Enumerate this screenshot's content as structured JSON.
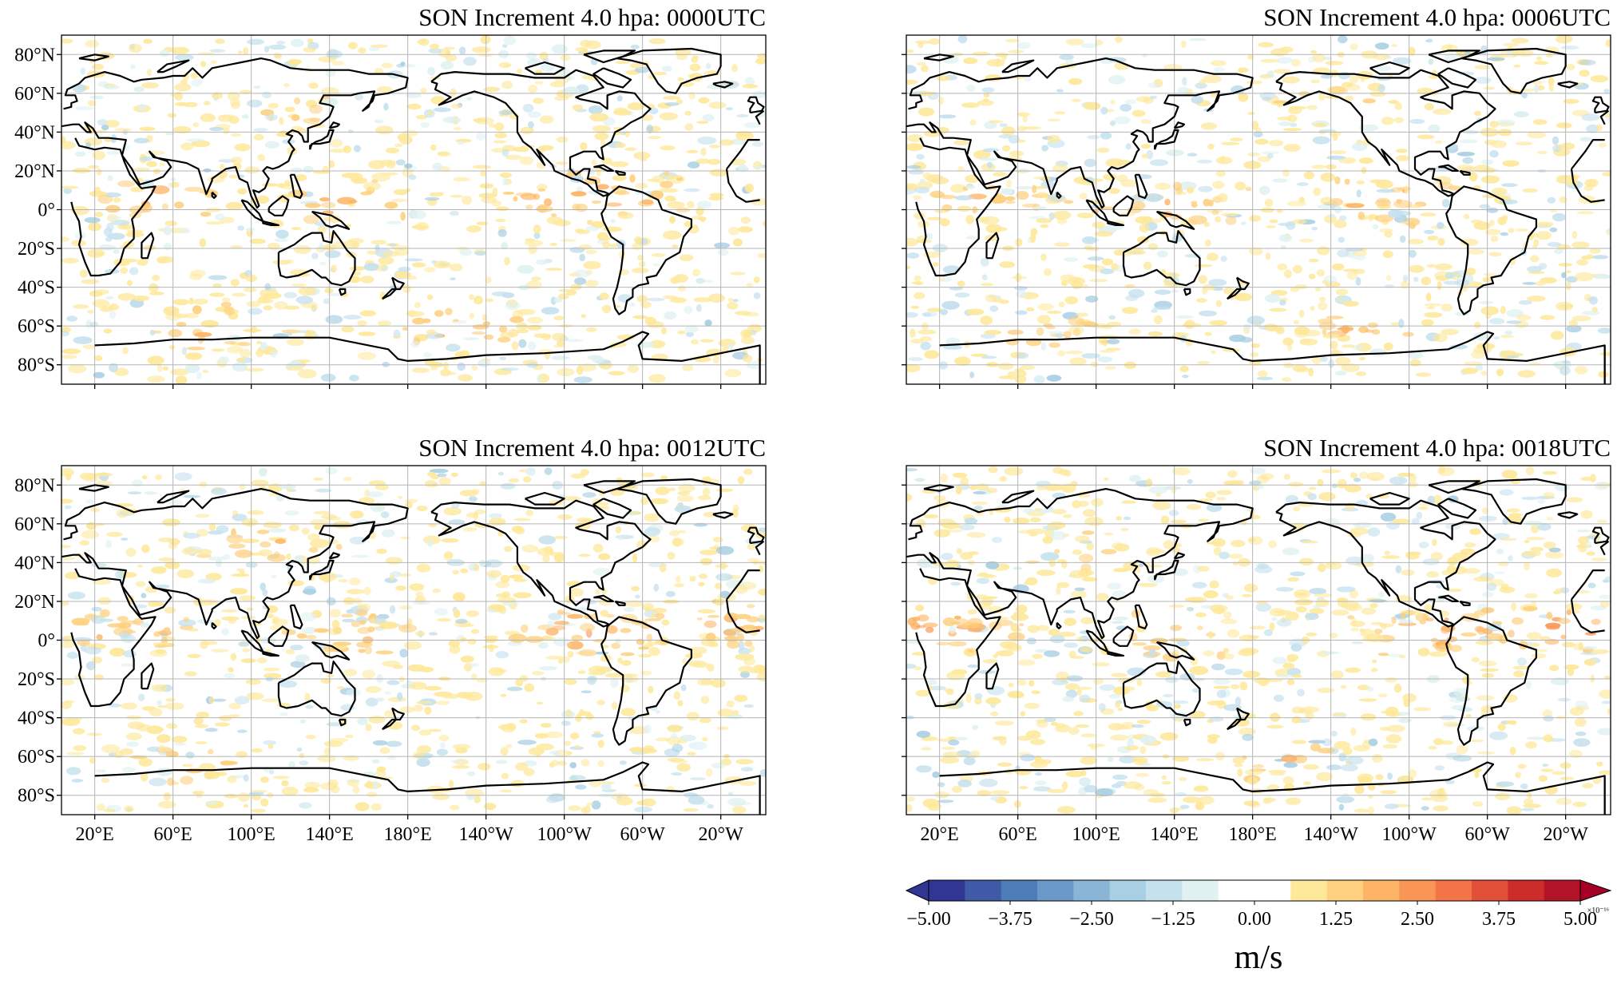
{
  "chart_data": {
    "type": "heatmap",
    "panels": [
      {
        "title": "SON Increment 4.0 hpa:  0000UTC",
        "hotspots": [
          {
            "lon": 50,
            "lat": 5,
            "amp": 0.7
          },
          {
            "lon": 145,
            "lat": 3,
            "amp": 0.5
          },
          {
            "lon": 255,
            "lat": 5,
            "amp": 0.6
          },
          {
            "lon": 300,
            "lat": 8,
            "amp": 0.45
          },
          {
            "lon": 80,
            "lat": -60,
            "amp": 0.5
          },
          {
            "lon": 200,
            "lat": -62,
            "amp": 0.5
          },
          {
            "lon": 120,
            "lat": 52,
            "amp": 0.35
          }
        ]
      },
      {
        "title": "SON Increment 4.0 hpa:  0006UTC",
        "hotspots": [
          {
            "lon": 45,
            "lat": 5,
            "amp": 0.6
          },
          {
            "lon": 140,
            "lat": 3,
            "amp": 0.5
          },
          {
            "lon": 250,
            "lat": 5,
            "amp": 0.55
          },
          {
            "lon": 75,
            "lat": -65,
            "amp": 0.45
          },
          {
            "lon": 230,
            "lat": -62,
            "amp": 0.45
          },
          {
            "lon": 210,
            "lat": 60,
            "amp": 0.35
          }
        ]
      },
      {
        "title": "SON Increment 4.0 hpa:  0012UTC",
        "hotspots": [
          {
            "lon": 35,
            "lat": 5,
            "amp": 0.6
          },
          {
            "lon": 150,
            "lat": 3,
            "amp": 0.5
          },
          {
            "lon": 265,
            "lat": 5,
            "amp": 0.75
          },
          {
            "lon": 330,
            "lat": 8,
            "amp": 0.6
          },
          {
            "lon": 70,
            "lat": -62,
            "amp": 0.5
          },
          {
            "lon": 110,
            "lat": 50,
            "amp": 0.35
          }
        ]
      },
      {
        "title": "SON Increment 4.0 hpa:  0018UTC",
        "hotspots": [
          {
            "lon": 25,
            "lat": 5,
            "amp": 0.8
          },
          {
            "lon": 140,
            "lat": 3,
            "amp": 0.5
          },
          {
            "lon": 270,
            "lat": 5,
            "amp": 0.8
          },
          {
            "lon": 340,
            "lat": 7,
            "amp": 0.75
          },
          {
            "lon": 90,
            "lat": 45,
            "amp": 0.45
          },
          {
            "lon": 200,
            "lat": -62,
            "amp": 0.5
          }
        ]
      }
    ],
    "lon_ticks": [
      "20°E",
      "60°E",
      "100°E",
      "140°E",
      "180°E",
      "140°W",
      "100°W",
      "60°W",
      "20°W"
    ],
    "lat_ticks": [
      "80°N",
      "60°N",
      "40°N",
      "20°N",
      "0°",
      "20°S",
      "40°S",
      "60°S",
      "80°S"
    ],
    "lon_range": [
      0,
      360
    ],
    "lat_range": [
      -90,
      90
    ],
    "central_longitude": 180,
    "grid": true,
    "colorbar": {
      "min": -5.0,
      "max": 5.0,
      "step": 0.625,
      "tick_labels": [
        "−5.00",
        "−3.75",
        "−2.50",
        "−1.25",
        "0.00",
        "1.25",
        "2.50",
        "3.75",
        "5.00"
      ],
      "unit": "m/s",
      "exponent": "×10⁻¹⁶",
      "extend": "both",
      "colors": [
        "#313695",
        "#3f5aa7",
        "#4c7db9",
        "#6a99c8",
        "#8ab5d6",
        "#a9cfe4",
        "#c5e1ee",
        "#e0f1f2",
        "#ffffff",
        "#ffffff",
        "#fee89a",
        "#fed080",
        "#fdb466",
        "#f99555",
        "#f37446",
        "#e2503a",
        "#cc2c2a",
        "#b31326"
      ],
      "under_color": "#313695",
      "over_color": "#a50026"
    }
  }
}
